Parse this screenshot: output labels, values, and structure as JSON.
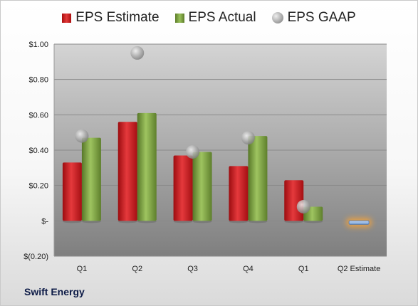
{
  "legend": {
    "estimate": "EPS Estimate",
    "actual": "EPS Actual",
    "gaap": "EPS GAAP"
  },
  "footer": {
    "company": "Swift Energy"
  },
  "colors": {
    "estimate": "#c0171c",
    "actual": "#7fa743",
    "gaap": "#a0a0a0",
    "forecast_bar": "#9dbde6",
    "forecast_glow": "#f2a23a"
  },
  "chart_data": {
    "type": "bar",
    "categories": [
      "Q1",
      "Q2",
      "Q3",
      "Q4",
      "Q1",
      "Q2 Estimate"
    ],
    "series": [
      {
        "name": "EPS Estimate",
        "values": [
          0.33,
          0.56,
          0.37,
          0.31,
          0.23,
          null
        ]
      },
      {
        "name": "EPS Actual",
        "values": [
          0.47,
          0.61,
          0.39,
          0.48,
          0.08,
          null
        ]
      },
      {
        "name": "EPS GAAP",
        "values": [
          0.48,
          0.95,
          0.39,
          0.47,
          0.08,
          null
        ]
      }
    ],
    "forecast": {
      "category": "Q2 Estimate",
      "value": -0.02
    },
    "y_ticks": [
      "$(0.20)",
      "$-",
      "$0.20",
      "$0.40",
      "$0.60",
      "$0.80",
      "$1.00"
    ],
    "y_tick_values": [
      -0.2,
      0,
      0.2,
      0.4,
      0.6,
      0.8,
      1.0
    ],
    "ylim": [
      -0.2,
      1.0
    ],
    "grid": true,
    "legend_position": "top"
  }
}
